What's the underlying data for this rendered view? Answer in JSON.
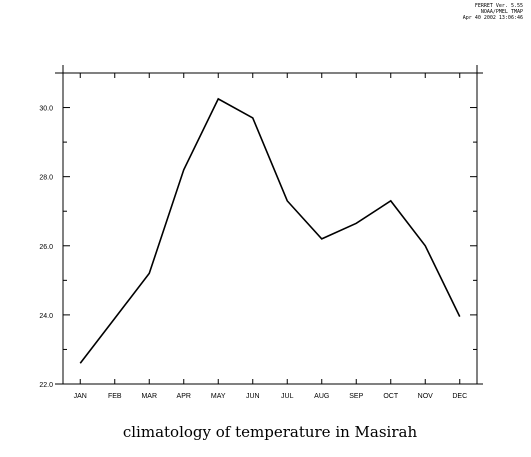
{
  "header": {
    "line1": "FERRET Ver. 5.55",
    "line2": "NOAA/PMEL TMAP",
    "line3": "Apr 40 2002 13:06:46"
  },
  "chart_data": {
    "type": "line",
    "title": "climatology of temperature in Masirah",
    "xlabel": "",
    "ylabel": "",
    "categories": [
      "JAN",
      "FEB",
      "MAR",
      "APR",
      "MAY",
      "JUN",
      "JUL",
      "AUG",
      "SEP",
      "OCT",
      "NOV",
      "DEC"
    ],
    "series": [
      {
        "values": [
          22.6,
          23.9,
          25.2,
          28.2,
          30.25,
          29.7,
          27.3,
          26.2,
          26.65,
          27.3,
          26.0,
          23.95
        ]
      }
    ],
    "ylim": [
      22.0,
      31.0
    ],
    "yticks": [
      "22.0",
      "24.0",
      "26.0",
      "28.0",
      "30.0"
    ],
    "grid": false,
    "legend": "none",
    "line_color": "#000000"
  }
}
